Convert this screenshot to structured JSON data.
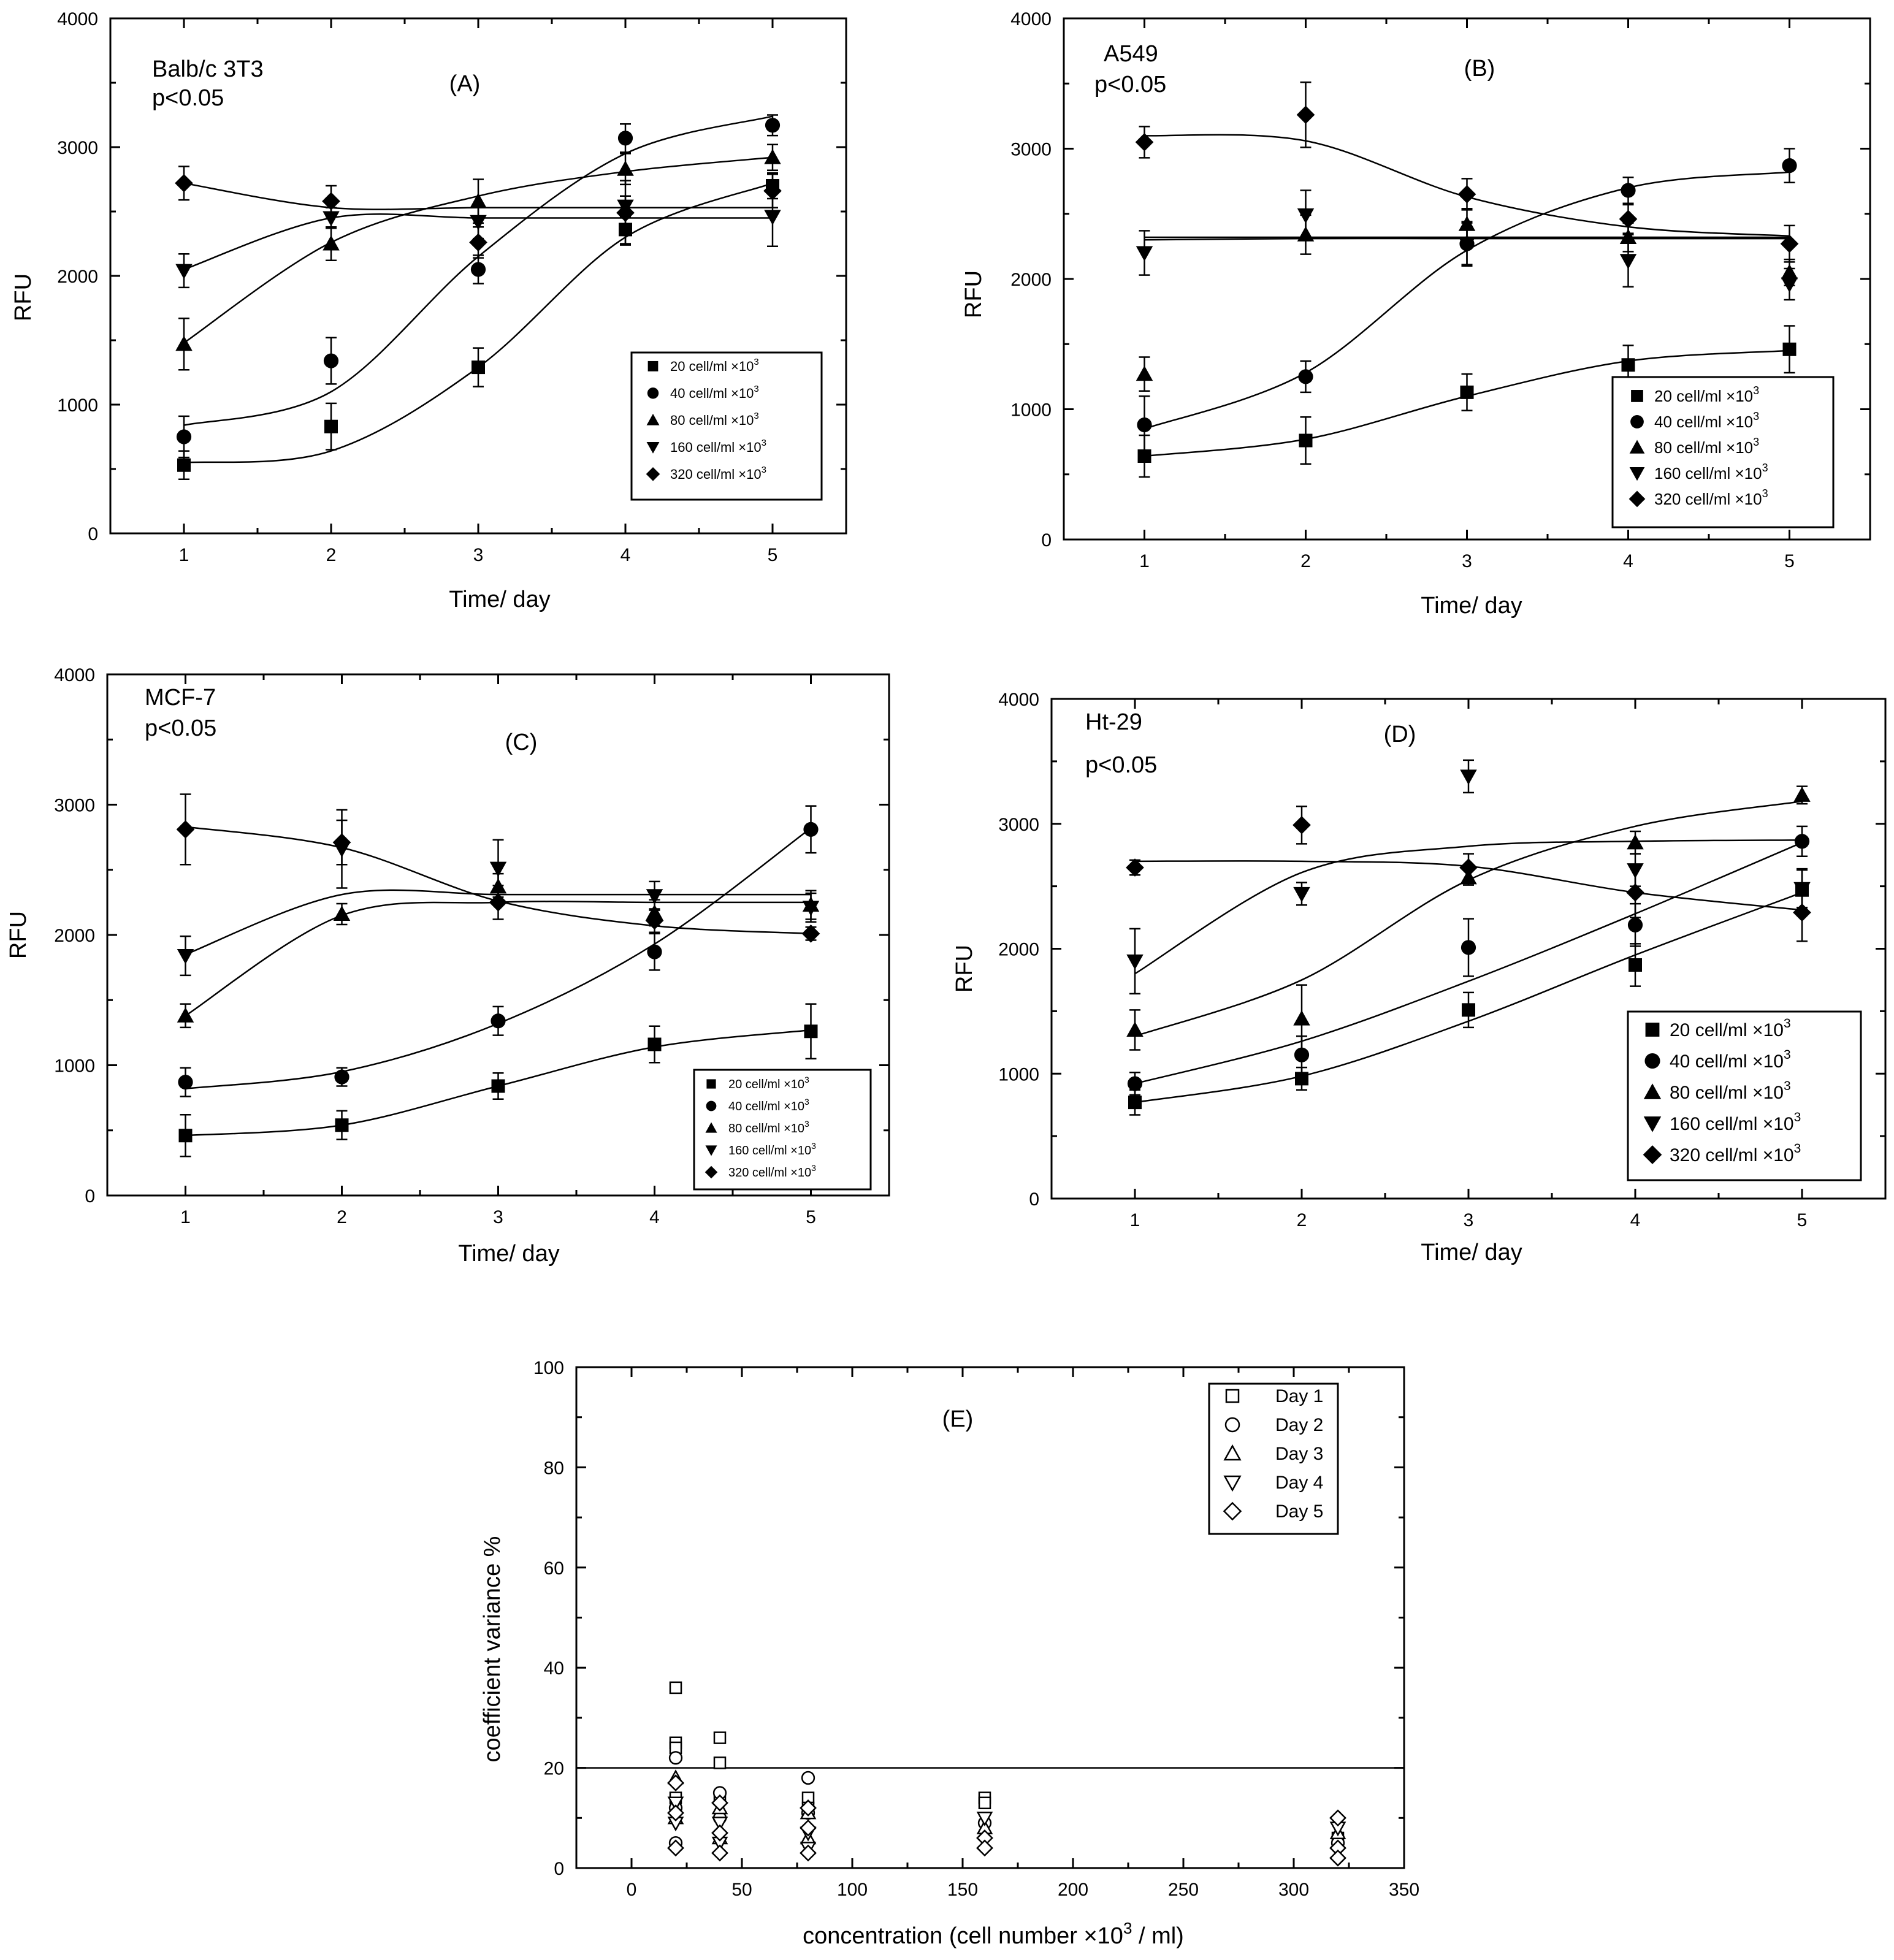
{
  "figure": {
    "panels": [
      "A",
      "B",
      "C",
      "D",
      "E"
    ]
  },
  "chart_data": [
    {
      "id": "A",
      "type": "scatter",
      "title": "(A)",
      "cell_line": "Balb/c 3T3",
      "pvalue": "p<0.05",
      "xlabel": "Time/ day",
      "ylabel": "RFU",
      "x": [
        1,
        2,
        3,
        4,
        5
      ],
      "xlim": [
        0.5,
        5.5
      ],
      "ylim": [
        0,
        4000
      ],
      "xticks": [
        1,
        2,
        3,
        4,
        5
      ],
      "yticks": [
        0,
        1000,
        2000,
        3000,
        4000
      ],
      "legend_position": "lower-right",
      "series": [
        {
          "name": "20 cell/ml ×10",
          "exp": "3",
          "marker": "square",
          "values": [
            530,
            830,
            1290,
            2360,
            2700
          ],
          "errors": [
            110,
            180,
            150,
            110,
            100
          ],
          "fit": [
            550,
            640,
            1290,
            2300,
            2720
          ]
        },
        {
          "name": "40 cell/ml ×10",
          "exp": "3",
          "marker": "circle",
          "values": [
            750,
            1340,
            2050,
            3070,
            3170
          ],
          "errors": [
            160,
            180,
            110,
            110,
            80
          ],
          "fit": [
            840,
            1100,
            2150,
            2950,
            3240
          ]
        },
        {
          "name": "80 cell/ml ×10",
          "exp": "3",
          "marker": "triangle-up",
          "values": [
            1470,
            2250,
            2580,
            2830,
            2920
          ],
          "errors": [
            200,
            130,
            170,
            120,
            100
          ],
          "fit": [
            1480,
            2260,
            2620,
            2810,
            2920
          ]
        },
        {
          "name": "160 cell/ml ×10",
          "exp": "3",
          "marker": "triangle-down",
          "values": [
            2040,
            2450,
            2420,
            2540,
            2460
          ],
          "errors": [
            130,
            80,
            130,
            80,
            230
          ],
          "fit": [
            2050,
            2450,
            2450,
            2450,
            2450
          ]
        },
        {
          "name": "320 cell/ml ×10",
          "exp": "3",
          "marker": "diamond",
          "values": [
            2720,
            2580,
            2260,
            2490,
            2660
          ],
          "errors": [
            130,
            120,
            120,
            250,
            130
          ],
          "fit": [
            2720,
            2530,
            2530,
            2530,
            2530
          ]
        }
      ]
    },
    {
      "id": "B",
      "type": "scatter",
      "title": "(B)",
      "cell_line": "A549",
      "pvalue": "p<0.05",
      "xlabel": "Time/ day",
      "ylabel": "RFU",
      "x": [
        1,
        2,
        3,
        4,
        5
      ],
      "xlim": [
        0.5,
        5.5
      ],
      "ylim": [
        0,
        4000
      ],
      "xticks": [
        1,
        2,
        3,
        4,
        5
      ],
      "yticks": [
        0,
        1000,
        2000,
        3000,
        4000
      ],
      "legend_position": "lower-right",
      "series": [
        {
          "name": "20 cell/ml ×10",
          "exp": "3",
          "marker": "square",
          "values": [
            640,
            760,
            1130,
            1340,
            1460
          ],
          "errors": [
            160,
            180,
            140,
            150,
            180
          ],
          "fit": [
            640,
            770,
            1100,
            1370,
            1450
          ]
        },
        {
          "name": "40 cell/ml ×10",
          "exp": "3",
          "marker": "circle",
          "values": [
            880,
            1250,
            2270,
            2680,
            2870
          ],
          "errors": [
            220,
            120,
            170,
            100,
            130
          ],
          "fit": [
            850,
            1280,
            2220,
            2700,
            2820
          ]
        },
        {
          "name": "80 cell/ml ×10",
          "exp": "3",
          "marker": "triangle-up",
          "values": [
            1270,
            2340,
            2420,
            2320,
            2050
          ],
          "errors": [
            130,
            150,
            120,
            110,
            100
          ],
          "fit": [
            2300,
            2310,
            2310,
            2310,
            2310
          ]
        },
        {
          "name": "160 cell/ml ×10",
          "exp": "3",
          "marker": "triangle-down",
          "values": [
            2200,
            2490,
            2270,
            2140,
            1960
          ],
          "errors": [
            170,
            190,
            160,
            200,
            120
          ],
          "fit": [
            2320,
            2320,
            2320,
            2320,
            2320
          ]
        },
        {
          "name": "320 cell/ml ×10",
          "exp": "3",
          "marker": "diamond",
          "values": [
            3050,
            3260,
            2650,
            2460,
            2270
          ],
          "errors": [
            120,
            250,
            120,
            110,
            140
          ],
          "fit": [
            3100,
            3060,
            2630,
            2400,
            2330
          ]
        }
      ]
    },
    {
      "id": "C",
      "type": "scatter",
      "title": "(C)",
      "cell_line": "MCF-7",
      "pvalue": "p<0.05",
      "xlabel": "Time/ day",
      "ylabel": "RFU",
      "x": [
        1,
        2,
        3,
        4,
        5
      ],
      "xlim": [
        0.5,
        5.5
      ],
      "ylim": [
        0,
        4000
      ],
      "xticks": [
        1,
        2,
        3,
        4,
        5
      ],
      "yticks": [
        0,
        1000,
        2000,
        3000,
        4000
      ],
      "legend_position": "lower-right",
      "series": [
        {
          "name": "20 cell/ml ×10",
          "exp": "3",
          "marker": "square",
          "values": [
            460,
            540,
            840,
            1160,
            1260
          ],
          "errors": [
            160,
            110,
            100,
            140,
            210
          ],
          "fit": [
            460,
            540,
            840,
            1140,
            1270
          ]
        },
        {
          "name": "40 cell/ml ×10",
          "exp": "3",
          "marker": "circle",
          "values": [
            870,
            910,
            1340,
            1870,
            2810
          ],
          "errors": [
            110,
            70,
            110,
            140,
            180
          ],
          "fit": [
            820,
            950,
            1320,
            1930,
            2820
          ]
        },
        {
          "name": "80 cell/ml ×10",
          "exp": "3",
          "marker": "triangle-up",
          "values": [
            1380,
            2160,
            2370,
            2170,
            2230
          ],
          "errors": [
            90,
            80,
            100,
            100,
            110
          ],
          "fit": [
            1380,
            2150,
            2250,
            2250,
            2250
          ]
        },
        {
          "name": "160 cell/ml ×10",
          "exp": "3",
          "marker": "triangle-down",
          "values": [
            1840,
            2660,
            2510,
            2300,
            2210
          ],
          "errors": [
            150,
            300,
            220,
            110,
            110
          ],
          "fit": [
            1850,
            2310,
            2310,
            2310,
            2310
          ]
        },
        {
          "name": "320 cell/ml ×10",
          "exp": "3",
          "marker": "diamond",
          "values": [
            2810,
            2710,
            2250,
            2110,
            2010
          ],
          "errors": [
            270,
            170,
            130,
            90,
            50
          ],
          "fit": [
            2830,
            2670,
            2260,
            2070,
            2010
          ]
        }
      ]
    },
    {
      "id": "D",
      "type": "scatter",
      "title": "(D)",
      "cell_line": "Ht-29",
      "pvalue": "p<0.05",
      "xlabel": "Time/ day",
      "ylabel": "RFU",
      "x": [
        1,
        2,
        3,
        4,
        5
      ],
      "xlim": [
        0.5,
        5.5
      ],
      "ylim": [
        0,
        4000
      ],
      "xticks": [
        1,
        2,
        3,
        4,
        5
      ],
      "yticks": [
        0,
        1000,
        2000,
        3000,
        4000
      ],
      "legend_position": "lower-right",
      "series": [
        {
          "name": "20 cell/ml ×10",
          "exp": "3",
          "marker": "square",
          "values": [
            770,
            960,
            1510,
            1870,
            2470
          ],
          "errors": [
            100,
            90,
            140,
            170,
            170
          ],
          "fit": [
            770,
            980,
            1420,
            1950,
            2450
          ]
        },
        {
          "name": "40 cell/ml ×10",
          "exp": "3",
          "marker": "circle",
          "values": [
            920,
            1150,
            2010,
            2190,
            2860
          ],
          "errors": [
            90,
            150,
            230,
            170,
            120
          ],
          "fit": [
            920,
            1260,
            1740,
            2280,
            2850
          ]
        },
        {
          "name": "80 cell/ml ×10",
          "exp": "3",
          "marker": "triangle-up",
          "values": [
            1350,
            1440,
            2570,
            2850,
            3230
          ],
          "errors": [
            160,
            270,
            60,
            90,
            70
          ],
          "fit": [
            1300,
            1750,
            2550,
            2980,
            3180
          ]
        },
        {
          "name": "160 cell/ml ×10",
          "exp": "3",
          "marker": "triangle-down",
          "values": [
            1900,
            2440,
            3380,
            2630,
            2480
          ],
          "errors": [
            260,
            90,
            130,
            130,
            150
          ],
          "fit": [
            1800,
            2610,
            2820,
            2860,
            2870
          ]
        },
        {
          "name": "320 cell/ml ×10",
          "exp": "3",
          "marker": "diamond",
          "values": [
            2650,
            2990,
            2650,
            2450,
            2290
          ],
          "errors": [
            60,
            150,
            110,
            200,
            230
          ],
          "fit": [
            2700,
            2700,
            2660,
            2450,
            2310
          ]
        }
      ]
    },
    {
      "id": "E",
      "type": "scatter",
      "title": "(E)",
      "xlabel": "concentration (cell number ×10",
      "xlabel_exp": "3",
      "xlabel_tail": " / ml)",
      "ylabel": "coefficient variance %",
      "xlim": [
        -25,
        350
      ],
      "ylim": [
        0,
        100
      ],
      "xticks": [
        0,
        50,
        100,
        150,
        200,
        250,
        300,
        350
      ],
      "yticks": [
        0,
        20,
        40,
        60,
        80,
        100
      ],
      "reference_line": 20,
      "legend_position": "top-right",
      "series": [
        {
          "name": "Day 1",
          "marker": "open-square",
          "x": [
            20,
            20,
            20,
            20,
            40,
            40,
            40,
            80,
            80,
            160,
            160,
            320
          ],
          "y": [
            36,
            25,
            24,
            14,
            26,
            21,
            14,
            14,
            12,
            14,
            13,
            6
          ]
        },
        {
          "name": "Day 2",
          "marker": "open-circle",
          "x": [
            20,
            20,
            20,
            40,
            40,
            80,
            80,
            160,
            320
          ],
          "y": [
            22,
            12,
            5,
            15,
            10,
            18,
            11,
            9,
            5
          ]
        },
        {
          "name": "Day 3",
          "marker": "open-triangle-up",
          "x": [
            20,
            20,
            40,
            40,
            80,
            80,
            160,
            320
          ],
          "y": [
            18,
            10,
            12,
            6,
            11,
            6,
            8,
            7
          ]
        },
        {
          "name": "Day 4",
          "marker": "open-triangle-down",
          "x": [
            20,
            20,
            40,
            40,
            80,
            80,
            160,
            320
          ],
          "y": [
            13,
            9,
            9,
            5,
            7,
            4,
            10,
            8
          ]
        },
        {
          "name": "Day 5",
          "marker": "open-diamond",
          "x": [
            20,
            20,
            20,
            40,
            40,
            40,
            80,
            80,
            80,
            160,
            160,
            320,
            320,
            320
          ],
          "y": [
            17,
            11,
            4,
            13,
            7,
            3,
            12,
            8,
            3,
            6,
            4,
            10,
            4,
            2
          ]
        }
      ]
    }
  ]
}
